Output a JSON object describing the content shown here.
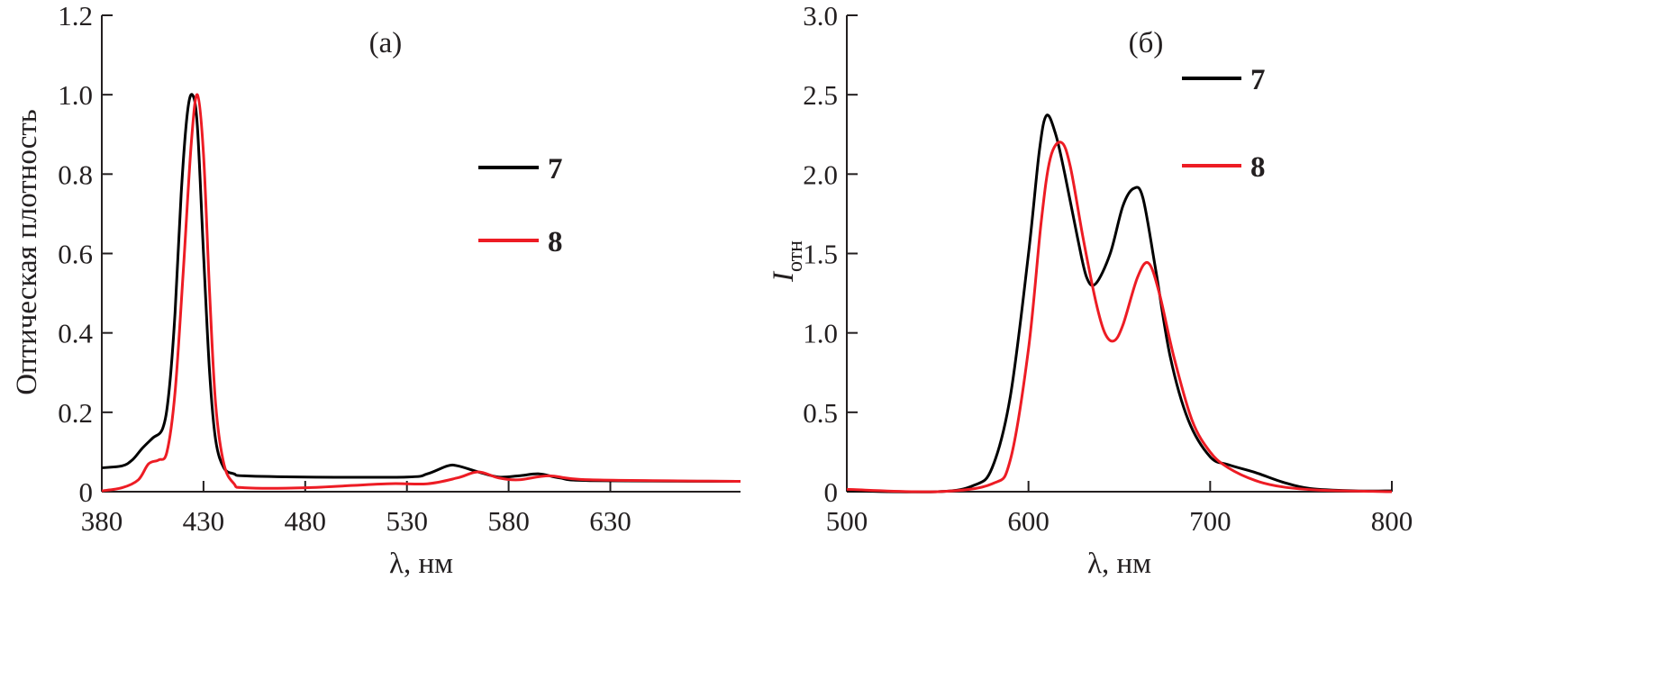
{
  "chart_data": [
    {
      "type": "line",
      "panel_label": "(a)",
      "xlabel": "λ, нм",
      "ylabel": "Оптическая плотность",
      "xlim": [
        380,
        694
      ],
      "ylim": [
        0,
        1.2
      ],
      "xticks": [
        380,
        430,
        480,
        530,
        580,
        630
      ],
      "yticks": [
        0,
        0.2,
        0.4,
        0.6,
        0.8,
        1.0,
        1.2
      ],
      "ytick_labels": [
        "0",
        "0.2",
        "0.4",
        "0.6",
        "0.8",
        "1.0",
        "1.2"
      ],
      "grid": false,
      "legend_placement": "right",
      "series": [
        {
          "name": "7",
          "color": "#000000",
          "x": [
            380,
            390,
            395,
            400,
            405,
            410,
            413,
            416,
            419,
            422,
            424.5,
            427,
            430,
            433,
            436,
            440,
            445,
            450,
            480,
            530,
            540,
            550,
            555,
            565,
            575,
            585,
            595,
            605,
            620,
            694
          ],
          "y": [
            0.06,
            0.065,
            0.08,
            0.11,
            0.135,
            0.16,
            0.25,
            0.45,
            0.75,
            0.95,
            1.0,
            0.92,
            0.6,
            0.3,
            0.13,
            0.06,
            0.045,
            0.04,
            0.037,
            0.037,
            0.045,
            0.065,
            0.065,
            0.05,
            0.037,
            0.04,
            0.045,
            0.035,
            0.028,
            0.026
          ]
        },
        {
          "name": "8",
          "color": "#ed1c24",
          "x": [
            380,
            390,
            398,
            403,
            408,
            412,
            416,
            420,
            424,
            427,
            430,
            433,
            436,
            440,
            445,
            450,
            480,
            520,
            540,
            555,
            565,
            575,
            585,
            600,
            620,
            694
          ],
          "y": [
            0.002,
            0.01,
            0.03,
            0.07,
            0.08,
            0.1,
            0.25,
            0.55,
            0.88,
            1.0,
            0.85,
            0.5,
            0.22,
            0.07,
            0.02,
            0.01,
            0.01,
            0.02,
            0.02,
            0.035,
            0.05,
            0.035,
            0.03,
            0.04,
            0.03,
            0.026
          ]
        }
      ]
    },
    {
      "type": "line",
      "panel_label": "(б)",
      "xlabel": "λ, нм",
      "ylabel": "I",
      "ylabel_sub": "отн",
      "xlim": [
        500,
        800
      ],
      "ylim": [
        0,
        3.0
      ],
      "xticks": [
        500,
        600,
        700,
        800
      ],
      "yticks": [
        0,
        0.5,
        1.0,
        1.5,
        2.0,
        2.5,
        3.0
      ],
      "ytick_labels": [
        "0",
        "0.5",
        "1.0",
        "1.5",
        "2.0",
        "2.5",
        "3.0"
      ],
      "grid": false,
      "legend_placement": "top-right",
      "series": [
        {
          "name": "7",
          "color": "#000000",
          "x": [
            500,
            550,
            570,
            580,
            590,
            600,
            606,
            610,
            615,
            620,
            627,
            632,
            637,
            645,
            652,
            658,
            663,
            670,
            678,
            688,
            700,
            710,
            725,
            740,
            755,
            780,
            800
          ],
          "y": [
            0.005,
            0,
            0.04,
            0.15,
            0.6,
            1.5,
            2.15,
            2.37,
            2.25,
            2.0,
            1.6,
            1.35,
            1.31,
            1.5,
            1.8,
            1.91,
            1.85,
            1.4,
            0.85,
            0.45,
            0.22,
            0.17,
            0.12,
            0.06,
            0.02,
            0.005,
            0.005
          ]
        },
        {
          "name": "8",
          "color": "#ed1c24",
          "x": [
            500,
            550,
            580,
            590,
            600,
            607,
            612,
            618,
            623,
            630,
            637,
            642,
            647,
            652,
            660,
            666,
            672,
            680,
            690,
            700,
            710,
            725,
            740,
            760,
            800
          ],
          "y": [
            0.015,
            0,
            0.05,
            0.2,
            0.9,
            1.7,
            2.1,
            2.2,
            2.05,
            1.6,
            1.2,
            1.0,
            0.95,
            1.05,
            1.35,
            1.44,
            1.25,
            0.85,
            0.45,
            0.25,
            0.15,
            0.07,
            0.03,
            0.01,
            0
          ]
        }
      ]
    }
  ]
}
